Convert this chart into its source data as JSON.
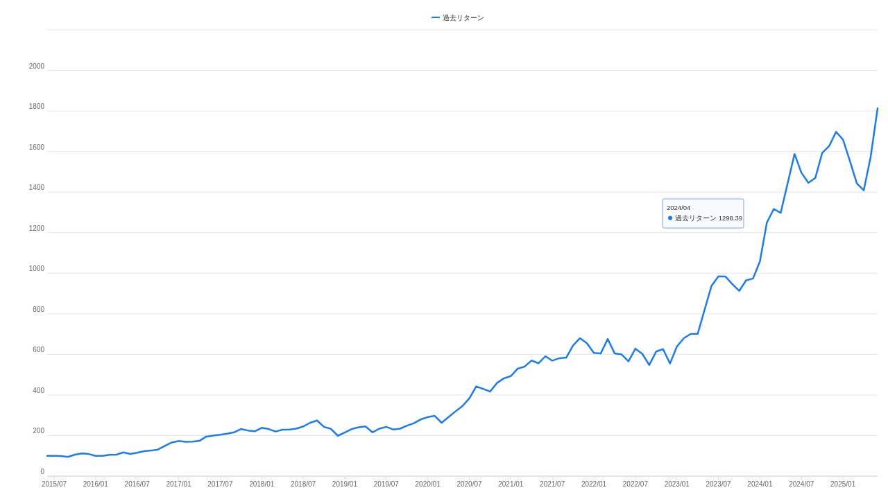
{
  "chart_data": {
    "type": "line",
    "categories": [
      null,
      "2015/07",
      null,
      null,
      null,
      null,
      null,
      "2016/01",
      null,
      null,
      null,
      null,
      null,
      "2016/07",
      null,
      null,
      null,
      null,
      null,
      "2017/01",
      null,
      null,
      null,
      null,
      null,
      "2017/07",
      null,
      null,
      null,
      null,
      null,
      "2018/01",
      null,
      null,
      null,
      null,
      null,
      "2018/07",
      null,
      null,
      null,
      null,
      null,
      "2019/01",
      null,
      null,
      null,
      null,
      null,
      "2019/07",
      null,
      null,
      null,
      null,
      null,
      "2020/01",
      null,
      null,
      null,
      null,
      null,
      "2020/07",
      null,
      null,
      null,
      null,
      null,
      "2021/01",
      null,
      null,
      null,
      null,
      null,
      "2021/07",
      null,
      null,
      null,
      null,
      null,
      "2022/01",
      null,
      null,
      null,
      null,
      null,
      "2022/07",
      null,
      null,
      null,
      null,
      null,
      "2023/01",
      null,
      null,
      null,
      null,
      null,
      "2023/07",
      null,
      null,
      null,
      null,
      null,
      "2024/01",
      null,
      null,
      null,
      null,
      null,
      "2024/07",
      null,
      null,
      null,
      null,
      null,
      "2025/01",
      null,
      null,
      null,
      null,
      null
    ],
    "series": [
      {
        "name": "過去リターン",
        "color": "#1a7cf5",
        "values": [
          100,
          100,
          99,
          95,
          106,
          112,
          109,
          100,
          100,
          105,
          106,
          117,
          109,
          115,
          123,
          126,
          131,
          149,
          166,
          173,
          169,
          170,
          174,
          195,
          200,
          204,
          209,
          216,
          232,
          225,
          221,
          238,
          232,
          220,
          229,
          230,
          234,
          245,
          263,
          274,
          243,
          233,
          199,
          215,
          232,
          241,
          245,
          216,
          234,
          243,
          230,
          234,
          249,
          261,
          280,
          291,
          297,
          263,
          291,
          319,
          345,
          383,
          442,
          430,
          417,
          459,
          482,
          493,
          530,
          540,
          570,
          556,
          591,
          569,
          581,
          584,
          644,
          680,
          655,
          607,
          605,
          676,
          605,
          600,
          566,
          628,
          603,
          548,
          614,
          626,
          555,
          639,
          680,
          701,
          701,
          820,
          938,
          985,
          984,
          947,
          913,
          965,
          974,
          1059,
          1250,
          1317,
          1298,
          1443,
          1588,
          1495,
          1446,
          1470,
          1593,
          1627,
          1697,
          1659,
          1553,
          1443,
          1409,
          1574,
          1813
        ]
      }
    ],
    "ylim": [
      0,
      2200
    ],
    "yticks": [
      0,
      200,
      400,
      600,
      800,
      1000,
      1200,
      1400,
      1600,
      1800,
      2000,
      {
        "value": 2200,
        "label": null
      }
    ],
    "grid": "y",
    "legend": "top",
    "annotations": [
      "2024/04",
      "過去リターン  1298.39"
    ]
  }
}
